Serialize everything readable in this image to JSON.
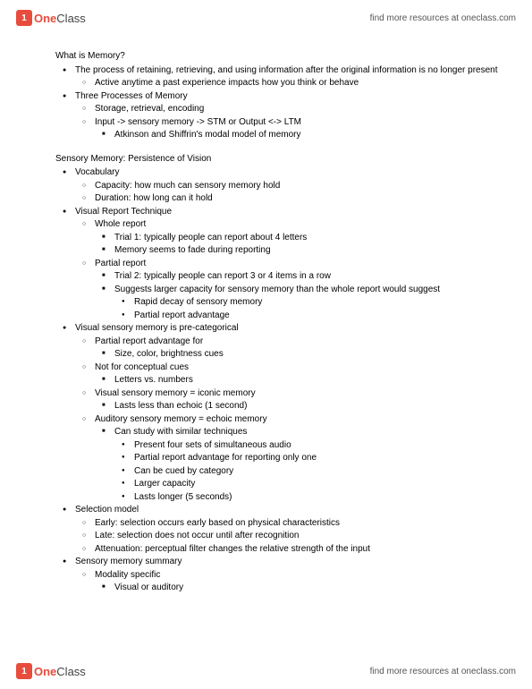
{
  "brand": {
    "icon_glyph": "1",
    "name_part1": "One",
    "name_part2": "Class",
    "tagline": "find more resources at oneclass.com",
    "icon_bg": "#e74c3c"
  },
  "doc": {
    "section1_title": "What is Memory?",
    "s1_b1": "The process of retaining, retrieving, and using information after the original information is no longer present",
    "s1_b1_1": "Active anytime a past experience impacts how you think or behave",
    "s1_b2": "Three Processes of Memory",
    "s1_b2_1": "Storage, retrieval, encoding",
    "s1_b2_2": "Input -> sensory memory -> STM or Output <-> LTM",
    "s1_b2_2_1": "Atkinson and Shiffrin's modal model of memory",
    "section2_title": "Sensory Memory: Persistence of Vision",
    "s2_b1": "Vocabulary",
    "s2_b1_1": "Capacity: how much can sensory memory hold",
    "s2_b1_2": "Duration: how long can it hold",
    "s2_b2": "Visual Report Technique",
    "s2_b2_1": "Whole report",
    "s2_b2_1_1": "Trial 1: typically people can report about 4 letters",
    "s2_b2_1_2": "Memory seems to fade during reporting",
    "s2_b2_2": "Partial report",
    "s2_b2_2_1": "Trial 2: typically people can report 3 or 4 items in a row",
    "s2_b2_2_2": "Suggests larger capacity for sensory memory than the whole report would suggest",
    "s2_b2_2_2_1": "Rapid decay of sensory memory",
    "s2_b2_2_2_2": "Partial report advantage",
    "s2_b3": "Visual sensory memory is pre-categorical",
    "s2_b3_1": "Partial report advantage for",
    "s2_b3_1_1": "Size, color, brightness cues",
    "s2_b3_2": "Not for conceptual cues",
    "s2_b3_2_1": "Letters vs. numbers",
    "s2_b3_3": "Visual sensory memory = iconic memory",
    "s2_b3_3_1": "Lasts less than echoic (1 second)",
    "s2_b3_4": "Auditory sensory memory = echoic memory",
    "s2_b3_4_1": "Can study with similar techniques",
    "s2_b3_4_1_1": "Present four sets of simultaneous audio",
    "s2_b3_4_1_2": "Partial report advantage for reporting only one",
    "s2_b3_4_1_3": "Can be cued by category",
    "s2_b3_4_1_4": "Larger capacity",
    "s2_b3_4_1_5": "Lasts longer (5 seconds)",
    "s2_b4": "Selection model",
    "s2_b4_1": "Early: selection occurs early based on physical characteristics",
    "s2_b4_2": "Late: selection does not occur until after recognition",
    "s2_b4_3": "Attenuation: perceptual filter changes the relative strength of the input",
    "s2_b5": "Sensory memory summary",
    "s2_b5_1": "Modality specific",
    "s2_b5_1_1": "Visual or auditory"
  }
}
